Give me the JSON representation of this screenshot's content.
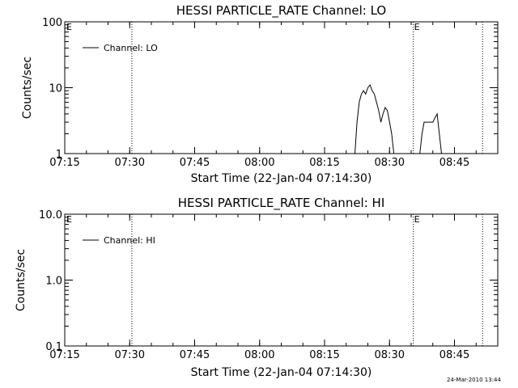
{
  "chart_data": [
    {
      "type": "line",
      "title": "HESSI PARTICLE_RATE Channel: LO",
      "xlabel": "Start Time (22-Jan-04 07:14:30)",
      "ylabel": "Counts/sec",
      "y_scale": "log",
      "ylim": [
        1,
        100
      ],
      "xlim": [
        "07:15",
        "08:55"
      ],
      "xtick_labels": [
        "07:15",
        "07:30",
        "07:45",
        "08:00",
        "08:15",
        "08:30",
        "08:45"
      ],
      "ytick_labels": [
        "1",
        "10",
        "100"
      ],
      "legend": {
        "placement": "top-left",
        "entries": [
          "Channel: LO"
        ]
      },
      "markers": [
        {
          "time": "07:30:30",
          "label": ""
        },
        {
          "time": "08:35:30",
          "label": "E"
        },
        {
          "time": "08:51:30",
          "label": ""
        }
      ],
      "series": [
        {
          "name": "Channel: LO",
          "segments": [
            [
              [
                "08:22:00",
                1
              ],
              [
                "08:22:30",
                3
              ],
              [
                "08:23:00",
                6
              ],
              [
                "08:23:30",
                8
              ],
              [
                "08:24:00",
                9
              ],
              [
                "08:24:30",
                8
              ],
              [
                "08:25:00",
                10
              ],
              [
                "08:25:30",
                11
              ],
              [
                "08:26:00",
                9
              ],
              [
                "08:26:30",
                8
              ],
              [
                "08:27:00",
                6
              ],
              [
                "08:27:30",
                4.5
              ],
              [
                "08:28:00",
                3
              ],
              [
                "08:28:30",
                4
              ],
              [
                "08:29:00",
                5
              ],
              [
                "08:29:30",
                4.5
              ],
              [
                "08:30:00",
                3
              ],
              [
                "08:30:30",
                2
              ],
              [
                "08:31:00",
                1
              ]
            ],
            [
              [
                "08:37:00",
                1
              ],
              [
                "08:37:30",
                2
              ],
              [
                "08:38:00",
                3
              ],
              [
                "08:38:30",
                3
              ],
              [
                "08:39:00",
                3
              ],
              [
                "08:39:30",
                3
              ],
              [
                "08:40:00",
                3
              ],
              [
                "08:40:30",
                3.5
              ],
              [
                "08:41:00",
                4
              ],
              [
                "08:41:30",
                2
              ],
              [
                "08:42:00",
                1
              ]
            ]
          ]
        }
      ]
    },
    {
      "type": "line",
      "title": "HESSI PARTICLE_RATE Channel: HI",
      "xlabel": "Start Time (22-Jan-04 07:14:30)",
      "ylabel": "Counts/sec",
      "y_scale": "log",
      "ylim": [
        0.1,
        10
      ],
      "xlim": [
        "07:15",
        "08:55"
      ],
      "xtick_labels": [
        "07:15",
        "07:30",
        "07:45",
        "08:00",
        "08:15",
        "08:30",
        "08:45"
      ],
      "ytick_labels": [
        "0.1",
        "1.0",
        "10.0"
      ],
      "legend": {
        "placement": "top-left",
        "entries": [
          "Channel: HI"
        ]
      },
      "markers": [
        {
          "time": "07:30:30",
          "label": ""
        },
        {
          "time": "08:35:30",
          "label": "E"
        },
        {
          "time": "08:51:30",
          "label": ""
        }
      ],
      "series": [
        {
          "name": "Channel: HI",
          "segments": []
        }
      ]
    }
  ],
  "footer": {
    "timestamp": "24-Mar-2010 13:44"
  }
}
